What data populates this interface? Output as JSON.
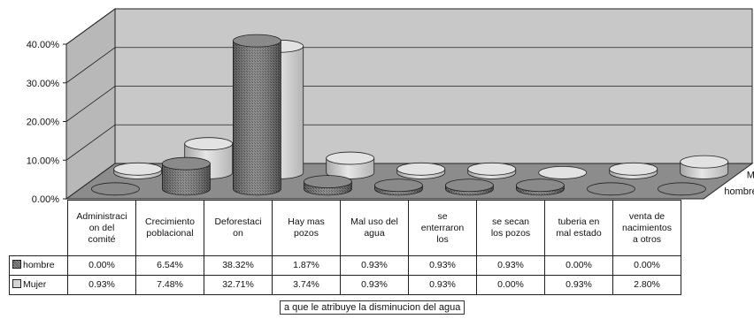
{
  "chart_data": {
    "type": "bar",
    "style": "3d-cylinder",
    "categories": [
      "Administracion del comité",
      "Crecimiento poblacional",
      "Deforestacion",
      "Hay mas pozos",
      "Mal uso del agua",
      "se enterraron los",
      "se secan los pozos",
      "tuberia en mal estado",
      "venta de nacimientos a otros"
    ],
    "category_lines": [
      [
        "Administraci",
        "on del",
        "comité"
      ],
      [
        "Crecimiento",
        "poblacional"
      ],
      [
        "Deforestaci",
        "on"
      ],
      [
        "Hay mas",
        "pozos"
      ],
      [
        "Mal uso del",
        "agua"
      ],
      [
        "se",
        "enterraron",
        "los"
      ],
      [
        "se secan",
        "los pozos"
      ],
      [
        "tuberia en",
        "mal estado"
      ],
      [
        "venta de",
        "nacimientos",
        "a otros"
      ]
    ],
    "series": [
      {
        "name": "hombre",
        "values": [
          0.0,
          6.54,
          38.32,
          1.87,
          0.93,
          0.93,
          0.93,
          0.0,
          0.0
        ],
        "labels": [
          "0.00%",
          "6.54%",
          "38.32%",
          "1.87%",
          "0.93%",
          "0.93%",
          "0.93%",
          "0.00%",
          "0.00%"
        ],
        "color": "#6e6e6e",
        "pattern": "dotted-dark"
      },
      {
        "name": "Mujer",
        "values": [
          0.93,
          7.48,
          32.71,
          3.74,
          0.93,
          0.93,
          0.0,
          0.93,
          2.8
        ],
        "labels": [
          "0.93%",
          "7.48%",
          "32.71%",
          "3.74%",
          "0.93%",
          "0.93%",
          "0.00%",
          "0.93%",
          "2.80%"
        ],
        "color": "#d2d2d2",
        "pattern": "light"
      }
    ],
    "xlabel": "a que le atribuye la disminucion del agua",
    "ylabel": "",
    "ylim": [
      0,
      40
    ],
    "yticks": [
      "0.00%",
      "10.00%",
      "20.00%",
      "30.00%",
      "40.00%"
    ],
    "grid": true,
    "wall_color": "#c8c8c8",
    "floor_color": "#8c8c8c",
    "data_table": true
  }
}
